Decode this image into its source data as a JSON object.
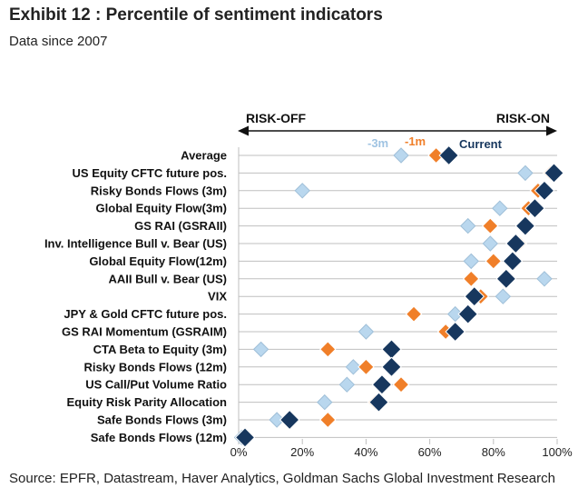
{
  "header": {
    "title": "Exhibit 12 : Percentile of sentiment indicators",
    "subtitle": "Data since 2007"
  },
  "footer": {
    "source": "Source: EPFR, Datastream, Haver Analytics, Goldman Sachs Global Investment Research"
  },
  "colors": {
    "current": "#17375e",
    "m1": "#f07f29",
    "m3": "#b9d7ee",
    "m3_stroke": "#9fbfd8",
    "grid": "#bfbfbf",
    "arrow": "#111111"
  },
  "chart_data": {
    "type": "scatter",
    "orientation": "horizontal",
    "region_labels": {
      "left": "RISK-OFF",
      "right": "RISK-ON"
    },
    "xlim": [
      0,
      100
    ],
    "x_ticks": [
      "0%",
      "20%",
      "40%",
      "60%",
      "80%",
      "100%"
    ],
    "categories": [
      "Average",
      "US Equity CFTC future pos.",
      "Risky Bonds Flows (3m)",
      "Global Equity Flow(3m)",
      "GS RAI (GSRAII)",
      "Inv. Intelligence Bull v. Bear (US)",
      "Global Equity Flow(12m)",
      "AAII Bull v. Bear (US)",
      "VIX",
      "JPY & Gold CFTC future pos.",
      "GS RAI Momentum (GSRAIM)",
      "CTA Beta to Equity (3m)",
      "Risky Bonds Flows (12m)",
      "US Call/Put Volume Ratio",
      "Equity Risk Parity Allocation",
      "Safe Bonds Flows (3m)",
      "Safe Bonds Flows (12m)"
    ],
    "series": [
      {
        "name": "-3m",
        "color": "#b9d7ee",
        "values": [
          51,
          90,
          20,
          82,
          72,
          79,
          73,
          96,
          83,
          68,
          40,
          7,
          36,
          34,
          27,
          12,
          1
        ]
      },
      {
        "name": "-1m",
        "color": "#f07f29",
        "values": [
          62,
          98,
          94,
          91,
          79,
          88,
          80,
          73,
          76,
          55,
          65,
          28,
          40,
          51,
          43,
          28,
          2
        ]
      },
      {
        "name": "Current",
        "color": "#17375e",
        "values": [
          66,
          99,
          96,
          93,
          90,
          87,
          86,
          84,
          74,
          72,
          68,
          48,
          48,
          45,
          44,
          16,
          2
        ]
      }
    ]
  }
}
